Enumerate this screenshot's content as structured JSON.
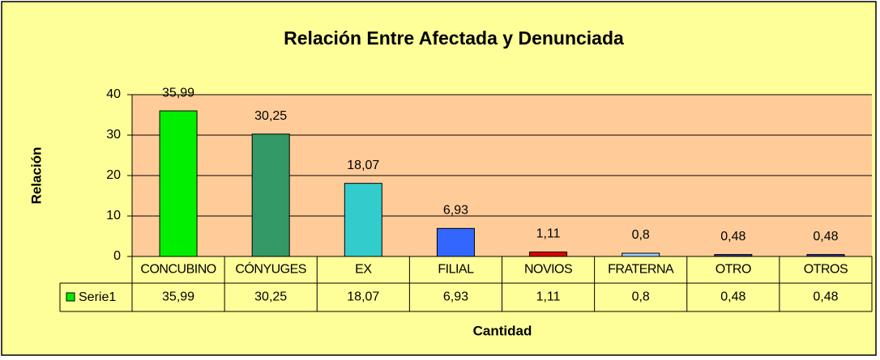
{
  "chart_data": {
    "type": "bar",
    "title": "Relación Entre Afectada y Denunciada",
    "y_label": "Relación",
    "x_label": "Cantidad",
    "categories": [
      "CONCUBINO",
      "CÓNYUGES",
      "EX",
      "FILIAL",
      "NOVIOS",
      "FRATERNA",
      "OTRO",
      "OTROS"
    ],
    "series": [
      {
        "name": "Serie1",
        "color": "#00ee00",
        "values": [
          35.99,
          30.25,
          18.07,
          6.93,
          1.11,
          0.8,
          0.48,
          0.48
        ],
        "value_labels": [
          "35,99",
          "30,25",
          "18,07",
          "6,93",
          "1,11",
          "0,8",
          "0,48",
          "0,48"
        ],
        "point_colors": [
          "#00ee00",
          "#339966",
          "#33cccc",
          "#3366ff",
          "#dd0000",
          "#99ccff",
          "#333399",
          "#333399"
        ]
      }
    ],
    "ylim": [
      0,
      40
    ],
    "yticks": [
      0,
      10,
      20,
      30,
      40
    ],
    "grid": true,
    "data_table": true
  }
}
